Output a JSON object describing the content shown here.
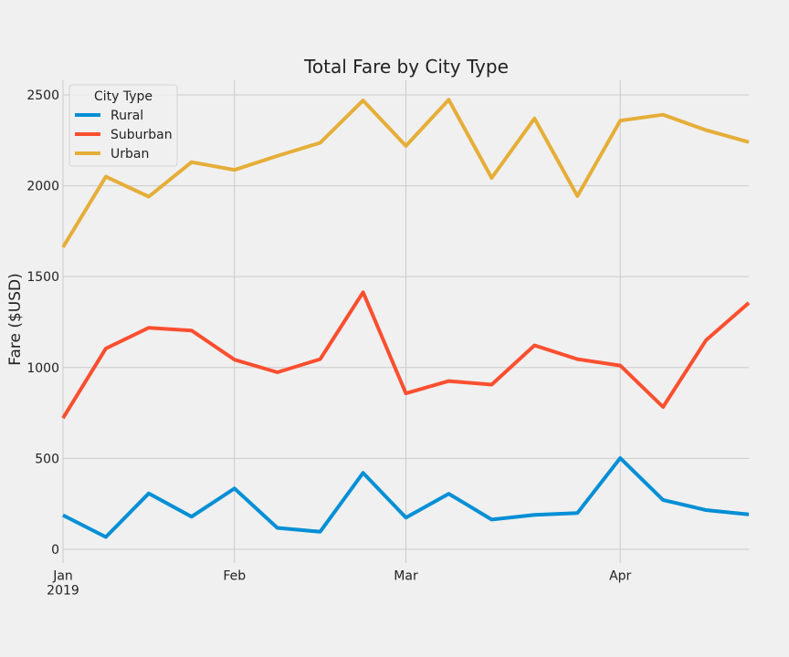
{
  "chart_data": {
    "type": "line",
    "title": "Total Fare by City Type",
    "xlabel": "",
    "ylabel": "Fare ($USD)",
    "ylim": [
      -75,
      2580
    ],
    "yticks": [
      0,
      500,
      1000,
      1500,
      2000,
      2500
    ],
    "x_index_range": [
      0,
      16
    ],
    "xticks": [
      {
        "index": 0,
        "label": "Jan",
        "sublabel": "2019"
      },
      {
        "index": 4,
        "label": "Feb",
        "sublabel": ""
      },
      {
        "index": 8,
        "label": "Mar",
        "sublabel": ""
      },
      {
        "index": 13,
        "label": "Apr",
        "sublabel": ""
      }
    ],
    "grid": true,
    "legend_title": "City Type",
    "legend_position": "top-left",
    "series": [
      {
        "name": "Rural",
        "color": "#008fd5",
        "values": [
          188,
          68,
          308,
          180,
          335,
          118,
          97,
          421,
          175,
          306,
          164,
          190,
          200,
          502,
          272,
          216,
          192
        ]
      },
      {
        "name": "Suburban",
        "color": "#fc4f30",
        "values": [
          722,
          1105,
          1219,
          1204,
          1043,
          974,
          1046,
          1414,
          858,
          926,
          906,
          1122,
          1046,
          1011,
          783,
          1150,
          1356
        ]
      },
      {
        "name": "Urban",
        "color": "#e5ae38",
        "values": [
          1662,
          2050,
          1940,
          2130,
          2087,
          2164,
          2236,
          2469,
          2219,
          2473,
          2043,
          2370,
          1943,
          2358,
          2391,
          2306,
          2240
        ]
      }
    ]
  }
}
